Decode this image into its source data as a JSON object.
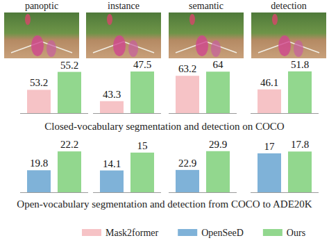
{
  "chart_data": [
    {
      "type": "bar",
      "title": "panoptic",
      "categories": [
        null
      ],
      "ylim": [
        50.6,
        55.4
      ],
      "data_labels": true,
      "tick_labels": false,
      "series": [
        {
          "name": "Mask2former",
          "color": "#f6c3c6",
          "values": [
            53.2
          ]
        },
        {
          "name": "Ours",
          "color": "#92d78e",
          "values": [
            55.2
          ]
        }
      ]
    },
    {
      "type": "bar",
      "title": "instance",
      "categories": [
        null
      ],
      "ylim": [
        41.6,
        47.7
      ],
      "data_labels": true,
      "tick_labels": false,
      "series": [
        {
          "name": "Mask2former",
          "color": "#f6c3c6",
          "values": [
            43.3
          ]
        },
        {
          "name": "Ours",
          "color": "#92d78e",
          "values": [
            47.5
          ]
        }
      ]
    },
    {
      "type": "bar",
      "title": "semantic",
      "categories": [
        null
      ],
      "ylim": [
        56.0,
        64.3
      ],
      "data_labels": true,
      "tick_labels": false,
      "series": [
        {
          "name": "Mask2former",
          "color": "#f6c3c6",
          "values": [
            63.2
          ]
        },
        {
          "name": "Ours",
          "color": "#92d78e",
          "values": [
            64.0
          ]
        }
      ]
    },
    {
      "type": "bar",
      "title": "detection",
      "categories": [
        null
      ],
      "ylim": [
        38.6,
        52.2
      ],
      "data_labels": true,
      "tick_labels": false,
      "series": [
        {
          "name": "Mask2former",
          "color": "#f6c3c6",
          "values": [
            46.1
          ]
        },
        {
          "name": "Ours",
          "color": "#92d78e",
          "values": [
            51.8
          ]
        }
      ]
    },
    {
      "type": "bar",
      "categories": [
        null
      ],
      "ylim": [
        17.0,
        22.3
      ],
      "data_labels": true,
      "tick_labels": false,
      "series": [
        {
          "name": "OpenSeeD",
          "color": "#7fb2d8",
          "values": [
            19.8
          ]
        },
        {
          "name": "Ours",
          "color": "#92d78e",
          "values": [
            22.2
          ]
        }
      ]
    },
    {
      "type": "bar",
      "categories": [
        null
      ],
      "ylim": [
        13.0,
        15.1
      ],
      "data_labels": true,
      "tick_labels": false,
      "series": [
        {
          "name": "OpenSeeD",
          "color": "#7fb2d8",
          "values": [
            14.1
          ]
        },
        {
          "name": "Ours",
          "color": "#92d78e",
          "values": [
            15.0
          ]
        }
      ]
    },
    {
      "type": "bar",
      "categories": [
        null
      ],
      "ylim": [
        14.6,
        30.1
      ],
      "data_labels": true,
      "tick_labels": false,
      "series": [
        {
          "name": "OpenSeeD",
          "color": "#7fb2d8",
          "values": [
            22.9
          ]
        },
        {
          "name": "Ours",
          "color": "#92d78e",
          "values": [
            29.9
          ]
        }
      ]
    },
    {
      "type": "bar",
      "categories": [
        null
      ],
      "ylim": [
        0,
        18.2
      ],
      "data_labels": true,
      "tick_labels": false,
      "series": [
        {
          "name": "OpenSeeD",
          "color": "#7fb2d8",
          "values": [
            17.0
          ]
        },
        {
          "name": "Ours",
          "color": "#92d78e",
          "values": [
            17.8
          ]
        }
      ]
    }
  ],
  "captions": [
    "Closed-vocabulary segmentation and detection on COCO",
    "Open-vocabulary segmentation and detection from COCO to ADE20K"
  ]
}
